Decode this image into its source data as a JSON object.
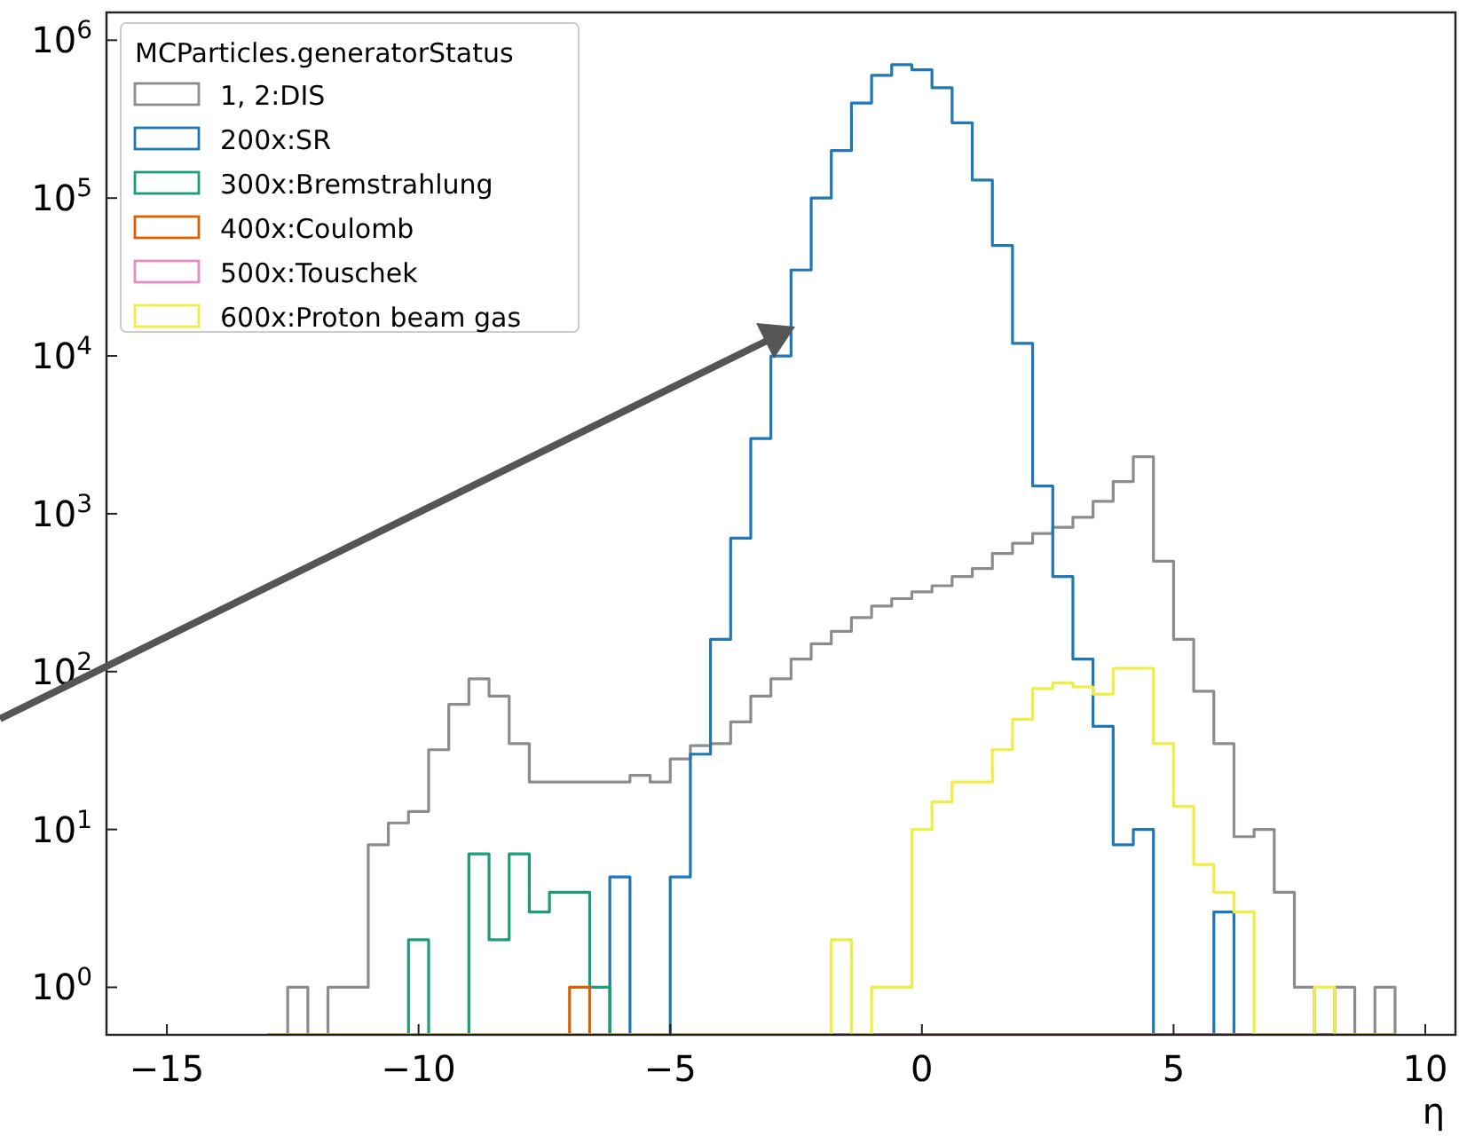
{
  "chart_data": {
    "type": "histogram",
    "xlabel": "η",
    "legend_title": "MCParticles.generatorStatus",
    "legend": "top left",
    "log": "y",
    "grid": false,
    "bins": [
      -13,
      -12.6,
      -12.2,
      -11.8,
      -11.4,
      -11,
      -10.6,
      -10.2,
      -9.8,
      -9.4,
      -9,
      -8.6,
      -8.2,
      -7.8,
      -7.4,
      -7,
      -6.6,
      -6.2,
      -5.8,
      -5.4,
      -5,
      -4.6,
      -4.2,
      -3.8,
      -3.4,
      -3,
      -2.6,
      -2.2,
      -1.8,
      -1.4,
      -1,
      -0.6,
      -0.2,
      0.2,
      0.6,
      1,
      1.4,
      1.8,
      2.2,
      2.6,
      3,
      3.4,
      3.8,
      4.2,
      4.6,
      5,
      5.4,
      5.8,
      6.2,
      6.6,
      7,
      7.4,
      7.8,
      8.2,
      8.6,
      9,
      9.4
    ],
    "series": [
      {
        "name": "1,  2:DIS",
        "color": "#8c8c8c",
        "values": [
          null,
          1,
          null,
          1,
          1,
          8,
          11,
          13,
          32,
          62,
          90,
          70,
          35,
          20,
          20,
          20,
          20,
          20,
          22,
          20,
          28,
          34,
          35,
          48,
          70,
          90,
          120,
          150,
          180,
          220,
          260,
          290,
          320,
          350,
          400,
          450,
          560,
          650,
          750,
          820,
          950,
          1200,
          1600,
          2300,
          500,
          160,
          75,
          35,
          9,
          10,
          4,
          1,
          null,
          1,
          null,
          1
        ]
      },
      {
        "name": "200x:SR",
        "color": "#1f77b4",
        "values": [
          null,
          null,
          null,
          null,
          null,
          null,
          null,
          null,
          null,
          null,
          null,
          null,
          null,
          null,
          null,
          null,
          null,
          5,
          null,
          null,
          5,
          30,
          160,
          700,
          3000,
          10000,
          35000,
          100000,
          200000,
          400000,
          600000,
          700000,
          650000,
          500000,
          300000,
          130000,
          50000,
          12000,
          1500,
          400,
          120,
          45,
          8,
          10,
          null,
          null,
          null,
          3,
          null,
          null,
          null,
          null,
          null,
          null,
          null,
          null
        ]
      },
      {
        "name": "300x:Bremstrahlung",
        "color": "#1b9e77",
        "values": [
          null,
          null,
          null,
          null,
          null,
          null,
          null,
          2,
          null,
          null,
          7,
          2,
          7,
          3,
          4,
          4,
          1,
          null,
          null,
          null,
          null,
          null,
          null,
          null,
          null,
          null,
          null,
          null,
          null,
          null,
          null,
          null,
          null,
          null,
          null,
          null,
          null,
          null,
          null,
          null,
          null,
          null,
          null,
          null,
          null,
          null,
          null,
          null,
          null,
          null,
          null,
          null,
          null,
          null,
          null,
          null
        ]
      },
      {
        "name": "400x:Coulomb",
        "color": "#d95f02",
        "values": [
          null,
          null,
          null,
          null,
          null,
          null,
          null,
          null,
          null,
          null,
          null,
          null,
          null,
          null,
          null,
          1,
          null,
          null,
          null,
          null,
          null,
          null,
          null,
          null,
          null,
          null,
          null,
          null,
          null,
          null,
          null,
          null,
          null,
          null,
          null,
          null,
          null,
          null,
          null,
          null,
          null,
          null,
          null,
          null,
          null,
          null,
          null,
          null,
          null,
          null,
          null,
          null,
          null,
          null,
          null,
          null
        ]
      },
      {
        "name": "500x:Touschek",
        "color": "#e78ac3",
        "values": [
          null,
          null,
          null,
          null,
          null,
          null,
          null,
          null,
          null,
          null,
          null,
          null,
          null,
          null,
          null,
          null,
          null,
          null,
          null,
          null,
          null,
          null,
          null,
          null,
          null,
          null,
          null,
          null,
          null,
          null,
          null,
          null,
          null,
          null,
          null,
          null,
          null,
          null,
          null,
          null,
          null,
          null,
          null,
          null,
          null,
          null,
          null,
          null,
          null,
          null,
          null,
          null,
          null,
          null,
          null,
          null
        ]
      },
      {
        "name": "600x:Proton beam gas",
        "color": "#eeee44",
        "values": [
          null,
          null,
          null,
          null,
          null,
          null,
          null,
          null,
          null,
          null,
          null,
          null,
          null,
          null,
          null,
          null,
          null,
          null,
          null,
          null,
          null,
          null,
          null,
          null,
          null,
          null,
          null,
          null,
          2,
          null,
          1,
          1,
          10,
          15,
          20,
          20,
          32,
          50,
          78,
          85,
          80,
          72,
          105,
          105,
          35,
          14,
          6,
          4,
          3,
          null,
          null,
          null,
          1,
          null,
          null,
          null
        ]
      }
    ],
    "xlim": [
      -16.2,
      10.6
    ],
    "xticks": [
      -15,
      -10,
      -5,
      0,
      5,
      10
    ],
    "ylim": [
      0.5,
      1500000
    ],
    "yticks": [
      {
        "value": 1,
        "label": "10$^{0}$"
      },
      {
        "value": 10,
        "label": "10$^{1}$"
      },
      {
        "value": 100,
        "label": "10$^{2}$"
      },
      {
        "value": 1000,
        "label": "10$^{3}$"
      },
      {
        "value": 10000,
        "label": "10$^{4}$"
      },
      {
        "value": 100000,
        "label": "10$^{5}$"
      },
      {
        "value": 1000000,
        "label": "10$^{6}$"
      }
    ]
  }
}
